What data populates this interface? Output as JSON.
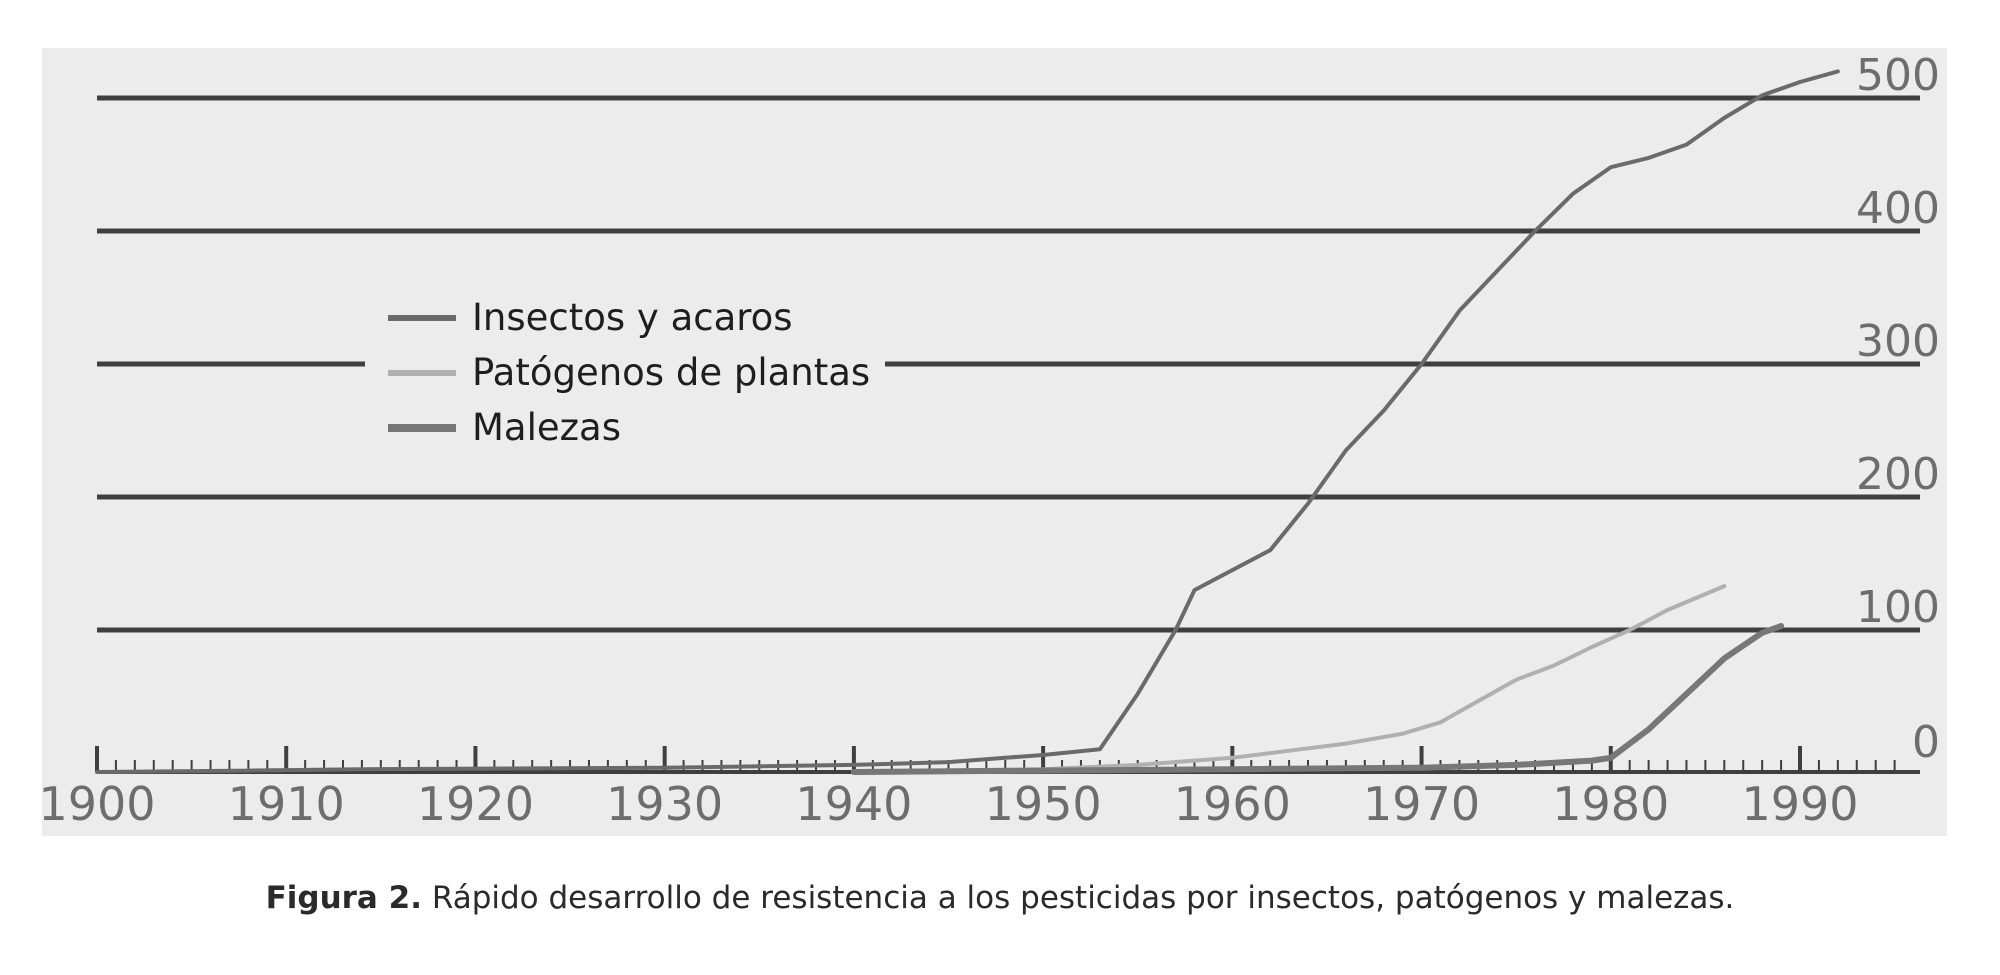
{
  "chart_data": {
    "type": "line",
    "title": "",
    "xlabel": "",
    "ylabel": "",
    "xlim": [
      1900,
      1995
    ],
    "ylim": [
      0,
      500
    ],
    "x_ticks": [
      "1900",
      "1910",
      "1920",
      "1930",
      "1940",
      "1950",
      "1960",
      "1970",
      "1980",
      "1990"
    ],
    "y_ticks": [
      "0",
      "100",
      "200",
      "300",
      "400",
      "500"
    ],
    "grid": true,
    "legend_position": "upper-left",
    "series": [
      {
        "name": "Insectos y acaros",
        "color": "#6a6a6a",
        "points": [
          [
            1900,
            0
          ],
          [
            1908,
            1
          ],
          [
            1914,
            2
          ],
          [
            1930,
            3
          ],
          [
            1940,
            5
          ],
          [
            1945,
            7
          ],
          [
            1948,
            10
          ],
          [
            1950,
            12
          ],
          [
            1953,
            16
          ],
          [
            1955,
            55
          ],
          [
            1957,
            100
          ],
          [
            1958,
            130
          ],
          [
            1960,
            145
          ],
          [
            1962,
            160
          ],
          [
            1964,
            195
          ],
          [
            1966,
            235
          ],
          [
            1968,
            265
          ],
          [
            1970,
            300
          ],
          [
            1972,
            340
          ],
          [
            1974,
            370
          ],
          [
            1976,
            400
          ],
          [
            1978,
            428
          ],
          [
            1980,
            448
          ],
          [
            1982,
            455
          ],
          [
            1984,
            465
          ],
          [
            1986,
            485
          ],
          [
            1988,
            502
          ],
          [
            1990,
            512
          ],
          [
            1992,
            520
          ]
        ]
      },
      {
        "name": "Patógenos de plantas",
        "color": "#b0b0b0",
        "points": [
          [
            1940,
            0
          ],
          [
            1950,
            2
          ],
          [
            1955,
            5
          ],
          [
            1960,
            10
          ],
          [
            1963,
            15
          ],
          [
            1966,
            20
          ],
          [
            1969,
            27
          ],
          [
            1971,
            35
          ],
          [
            1973,
            50
          ],
          [
            1975,
            65
          ],
          [
            1977,
            75
          ],
          [
            1979,
            88
          ],
          [
            1981,
            100
          ],
          [
            1983,
            115
          ],
          [
            1986,
            133
          ]
        ]
      },
      {
        "name": "Malezas",
        "color": "#777777",
        "points": [
          [
            1940,
            0
          ],
          [
            1950,
            1
          ],
          [
            1960,
            2
          ],
          [
            1970,
            3
          ],
          [
            1975,
            5
          ],
          [
            1979,
            8
          ],
          [
            1980,
            10
          ],
          [
            1982,
            30
          ],
          [
            1984,
            55
          ],
          [
            1986,
            80
          ],
          [
            1988,
            98
          ],
          [
            1989,
            103
          ]
        ]
      }
    ]
  },
  "caption": {
    "label": "Figura 2.",
    "text": " Rápido desarrollo de resistencia a los pesticidas por insectos, patógenos y malezas."
  }
}
